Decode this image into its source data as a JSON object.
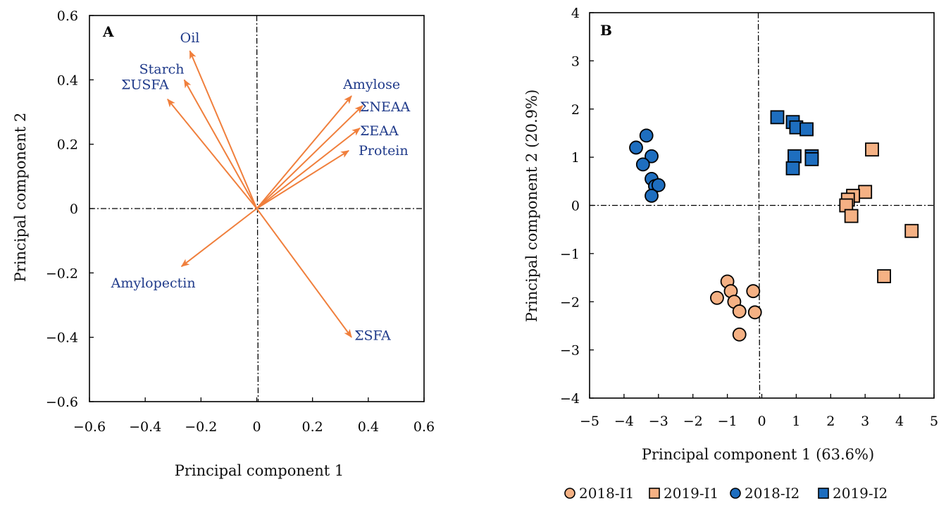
{
  "chart_data": [
    {
      "type": "biplot",
      "panel_label": "A",
      "xlabel": "Principal component 1",
      "ylabel": "Principal component 2",
      "xlim": [
        -0.6,
        0.6
      ],
      "ylim": [
        -0.6,
        0.6
      ],
      "xticks": [
        "−0.6",
        "−0.4",
        "−0.2",
        "0",
        "0.2",
        "0.4",
        "0.6"
      ],
      "yticks": [
        "0.6",
        "0.4",
        "0.2",
        "0",
        "−0.2",
        "−0.4",
        "−0.6"
      ],
      "vector_color": "#f07f3c",
      "label_color": "#1f3a8a",
      "vectors": [
        {
          "name": "Oil",
          "x": -0.24,
          "y": 0.49
        },
        {
          "name": "Starch",
          "x": -0.26,
          "y": 0.4
        },
        {
          "name": "ΣUSFA",
          "x": -0.32,
          "y": 0.34
        },
        {
          "name": "Amylose",
          "x": 0.34,
          "y": 0.35
        },
        {
          "name": "ΣNEAA",
          "x": 0.38,
          "y": 0.32
        },
        {
          "name": "ΣEAA",
          "x": 0.37,
          "y": 0.25
        },
        {
          "name": "Protein",
          "x": 0.33,
          "y": 0.18
        },
        {
          "name": "Amylopectin",
          "x": -0.27,
          "y": -0.18
        },
        {
          "name": "ΣSFA",
          "x": 0.34,
          "y": -0.4
        }
      ]
    },
    {
      "type": "scatter",
      "panel_label": "B",
      "xlabel": "Principal component 1 (63.6%)",
      "ylabel": "Principal component 2 (20.9%)",
      "xlim": [
        -5,
        5
      ],
      "ylim": [
        -4,
        4
      ],
      "xticks": [
        "−5",
        "−4",
        "−3",
        "−2",
        "−1",
        "0",
        "1",
        "2",
        "3",
        "4",
        "5"
      ],
      "yticks": [
        "4",
        "3",
        "2",
        "1",
        "0",
        "−1",
        "−2",
        "−3",
        "−4"
      ],
      "legend_position": "bottom",
      "series": [
        {
          "name": "2018-I1",
          "marker": "circle",
          "color": "#f5b184",
          "points": [
            [
              -1.0,
              -1.58
            ],
            [
              -0.9,
              -1.78
            ],
            [
              -1.3,
              -1.92
            ],
            [
              -0.8,
              -2.0
            ],
            [
              -0.65,
              -2.2
            ],
            [
              -0.25,
              -1.78
            ],
            [
              -0.2,
              -2.22
            ],
            [
              -0.65,
              -2.68
            ]
          ]
        },
        {
          "name": "2019-I1",
          "marker": "square",
          "color": "#f5b184",
          "points": [
            [
              3.2,
              1.16
            ],
            [
              3.0,
              0.28
            ],
            [
              2.65,
              0.2
            ],
            [
              2.5,
              0.12
            ],
            [
              2.45,
              0.0
            ],
            [
              2.6,
              -0.22
            ],
            [
              4.35,
              -0.53
            ],
            [
              3.55,
              -1.47
            ]
          ]
        },
        {
          "name": "2018-I2",
          "marker": "circle",
          "color": "#1e6ebf",
          "points": [
            [
              -3.35,
              1.45
            ],
            [
              -3.65,
              1.2
            ],
            [
              -3.2,
              1.02
            ],
            [
              -3.45,
              0.85
            ],
            [
              -3.2,
              0.55
            ],
            [
              -3.1,
              0.4
            ],
            [
              -3.0,
              0.42
            ],
            [
              -3.2,
              0.2
            ]
          ]
        },
        {
          "name": "2019-I2",
          "marker": "square",
          "color": "#1e6ebf",
          "points": [
            [
              0.45,
              1.83
            ],
            [
              0.9,
              1.73
            ],
            [
              1.0,
              1.62
            ],
            [
              1.3,
              1.58
            ],
            [
              1.45,
              1.02
            ],
            [
              1.45,
              0.96
            ],
            [
              0.95,
              1.02
            ],
            [
              0.9,
              0.77
            ]
          ]
        }
      ]
    }
  ]
}
